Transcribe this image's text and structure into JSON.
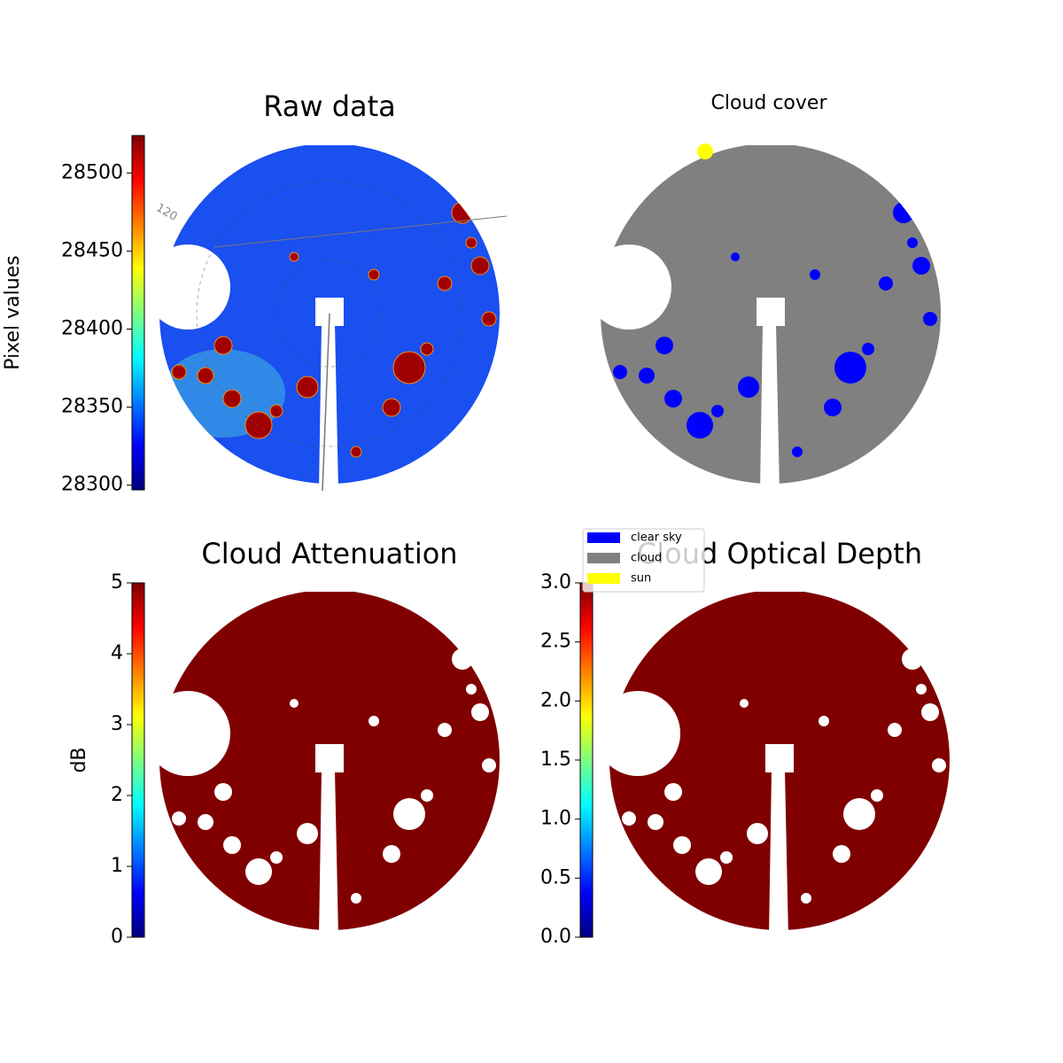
{
  "chart_data": [
    {
      "type": "image",
      "title": "Raw data",
      "colorbar_label": "Pixel values",
      "colormap": "jet",
      "ylim": [
        28297,
        28524
      ],
      "yticks": [
        28300,
        28350,
        28400,
        28450,
        28500
      ],
      "annotations": [
        "120"
      ]
    },
    {
      "type": "image",
      "title": "Cloud cover",
      "legend": [
        {
          "name": "clear sky",
          "color": "#0000ff"
        },
        {
          "name": "cloud",
          "color": "#808080"
        },
        {
          "name": "sun",
          "color": "#ffff00"
        }
      ]
    },
    {
      "type": "image",
      "title": "Cloud Attenuation",
      "colorbar_label": "dB",
      "colormap": "jet",
      "ylim": [
        0,
        5
      ],
      "yticks": [
        0,
        1,
        2,
        3,
        4,
        5
      ]
    },
    {
      "type": "image",
      "title": "Cloud Optical Depth",
      "colormap": "jet",
      "ylim": [
        0,
        3
      ],
      "yticks": [
        {
          "value": 0,
          "label": "0.0"
        },
        0.5,
        {
          "value": 1,
          "label": "1.0"
        },
        1.5,
        {
          "value": 2,
          "label": "2.0"
        },
        2.5,
        {
          "value": 3,
          "label": "3.0"
        }
      ]
    }
  ]
}
